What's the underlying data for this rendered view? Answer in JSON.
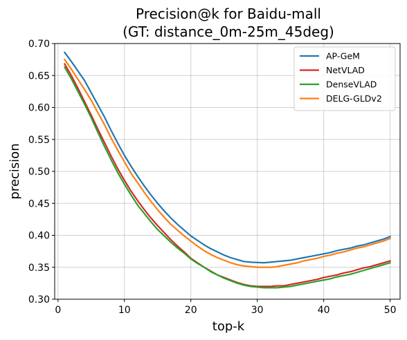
{
  "chart_data": {
    "type": "line",
    "title": "Precision@k for Baidu-mall",
    "subtitle": "(GT: distance_0m-25m_45deg)",
    "xlabel": "top-k",
    "ylabel": "precision",
    "xlim": [
      -0.5,
      51.5
    ],
    "ylim": [
      0.3,
      0.7
    ],
    "xticks": [
      0,
      10,
      20,
      30,
      40,
      50
    ],
    "xtick_labels": [
      "0",
      "10",
      "20",
      "30",
      "40",
      "50"
    ],
    "yticks": [
      0.3,
      0.35,
      0.4,
      0.45,
      0.5,
      0.55,
      0.6,
      0.65,
      0.7
    ],
    "ytick_labels": [
      "0.30",
      "0.35",
      "0.40",
      "0.45",
      "0.50",
      "0.55",
      "0.60",
      "0.65",
      "0.70"
    ],
    "grid": true,
    "legend_position": "top-right",
    "x": [
      1,
      2,
      3,
      4,
      5,
      6,
      7,
      8,
      9,
      10,
      11,
      12,
      13,
      14,
      15,
      16,
      17,
      18,
      19,
      20,
      21,
      22,
      23,
      24,
      25,
      26,
      27,
      28,
      29,
      30,
      31,
      32,
      33,
      34,
      35,
      36,
      37,
      38,
      39,
      40,
      41,
      42,
      43,
      44,
      45,
      46,
      47,
      48,
      49,
      50
    ],
    "series": [
      {
        "name": "AP-GeM",
        "color": "#1f77b4",
        "values": [
          0.686,
          0.672,
          0.657,
          0.642,
          0.623,
          0.604,
          0.585,
          0.564,
          0.544,
          0.525,
          0.508,
          0.492,
          0.477,
          0.463,
          0.45,
          0.438,
          0.427,
          0.417,
          0.408,
          0.399,
          0.392,
          0.385,
          0.379,
          0.374,
          0.369,
          0.365,
          0.362,
          0.359,
          0.358,
          0.3575,
          0.357,
          0.358,
          0.359,
          0.36,
          0.361,
          0.363,
          0.365,
          0.367,
          0.369,
          0.371,
          0.373,
          0.376,
          0.378,
          0.38,
          0.383,
          0.385,
          0.388,
          0.391,
          0.394,
          0.398
        ]
      },
      {
        "name": "NetVLAD",
        "color": "#d62728",
        "values": [
          0.668,
          0.65,
          0.63,
          0.609,
          0.588,
          0.566,
          0.545,
          0.524,
          0.504,
          0.486,
          0.469,
          0.454,
          0.44,
          0.427,
          0.415,
          0.404,
          0.393,
          0.383,
          0.374,
          0.364,
          0.357,
          0.35,
          0.344,
          0.338,
          0.334,
          0.33,
          0.326,
          0.323,
          0.321,
          0.32,
          0.32,
          0.32,
          0.321,
          0.321,
          0.323,
          0.325,
          0.327,
          0.329,
          0.331,
          0.334,
          0.336,
          0.338,
          0.341,
          0.343,
          0.346,
          0.349,
          0.351,
          0.354,
          0.357,
          0.36
        ]
      },
      {
        "name": "DenseVLAD",
        "color": "#2ca02c",
        "values": [
          0.663,
          0.645,
          0.625,
          0.605,
          0.584,
          0.561,
          0.539,
          0.518,
          0.498,
          0.48,
          0.463,
          0.447,
          0.434,
          0.421,
          0.409,
          0.399,
          0.389,
          0.38,
          0.372,
          0.363,
          0.356,
          0.35,
          0.343,
          0.338,
          0.333,
          0.329,
          0.325,
          0.322,
          0.32,
          0.319,
          0.318,
          0.318,
          0.318,
          0.319,
          0.32,
          0.322,
          0.324,
          0.326,
          0.328,
          0.33,
          0.332,
          0.335,
          0.337,
          0.339,
          0.342,
          0.345,
          0.348,
          0.351,
          0.354,
          0.357
        ]
      },
      {
        "name": "DELG-GLDv2",
        "color": "#ff7f0e",
        "values": [
          0.675,
          0.66,
          0.644,
          0.628,
          0.611,
          0.592,
          0.573,
          0.552,
          0.533,
          0.515,
          0.497,
          0.482,
          0.467,
          0.453,
          0.44,
          0.428,
          0.417,
          0.408,
          0.399,
          0.391,
          0.383,
          0.376,
          0.37,
          0.365,
          0.361,
          0.357,
          0.354,
          0.352,
          0.351,
          0.35,
          0.35,
          0.35,
          0.351,
          0.353,
          0.355,
          0.357,
          0.36,
          0.362,
          0.364,
          0.367,
          0.369,
          0.372,
          0.374,
          0.377,
          0.38,
          0.382,
          0.385,
          0.388,
          0.391,
          0.395
        ]
      }
    ]
  }
}
